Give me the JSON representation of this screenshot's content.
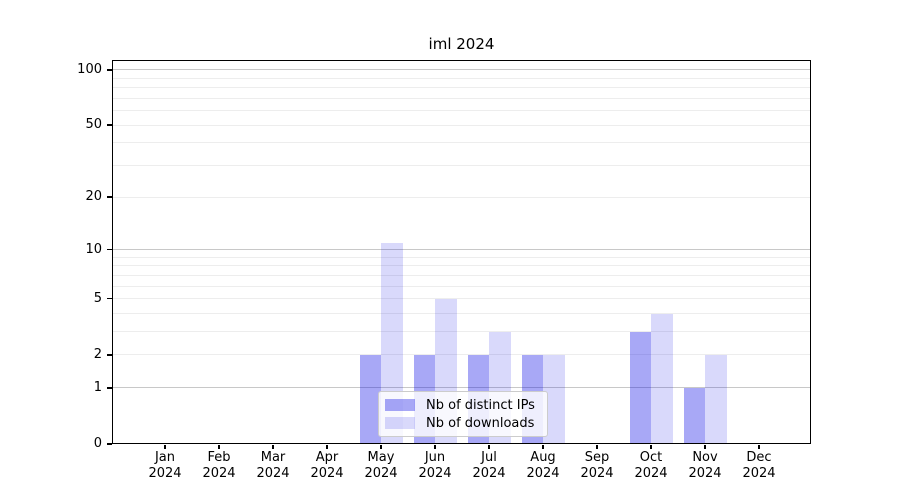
{
  "title": "iml 2024",
  "legend": {
    "items": [
      {
        "label": "Nb of distinct IPs",
        "color": "rgba(0,0,230,0.34)"
      },
      {
        "label": "Nb of downloads",
        "color": "rgba(0,0,230,0.15)"
      }
    ]
  },
  "chart_data": {
    "type": "bar",
    "title": "iml 2024",
    "categories": [
      "Jan",
      "Feb",
      "Mar",
      "Apr",
      "May",
      "Jun",
      "Jul",
      "Aug",
      "Sep",
      "Oct",
      "Nov",
      "Dec"
    ],
    "year": "2024",
    "series": [
      {
        "name": "Nb of distinct IPs",
        "color": "rgba(0,0,230,0.34)",
        "values": [
          0,
          0,
          0,
          0,
          2,
          2,
          2,
          2,
          0,
          3,
          1,
          0
        ]
      },
      {
        "name": "Nb of downloads",
        "color": "rgba(0,0,230,0.15)",
        "values": [
          0,
          0,
          0,
          0,
          11,
          5,
          3,
          2,
          0,
          4,
          2,
          0
        ]
      }
    ],
    "y_scale": "log1p",
    "ylim": [
      0,
      110
    ],
    "y_ticks": [
      0,
      1,
      2,
      5,
      10,
      20,
      50,
      100
    ],
    "y_major_gridlines": [
      1,
      10,
      100
    ],
    "y_minor_gridlines": [
      2,
      3,
      4,
      5,
      6,
      7,
      8,
      9,
      20,
      30,
      40,
      50,
      60,
      70,
      80,
      90
    ],
    "grid": true,
    "legend_position": "lower center",
    "colors": {
      "grid_major": "#c8c8c8",
      "grid_minor": "#ededed",
      "spine": "#000000",
      "text": "#000000",
      "background": "#ffffff",
      "legend_bg": "rgba(255,255,255,0.8)",
      "legend_border": "#cccccc"
    }
  }
}
